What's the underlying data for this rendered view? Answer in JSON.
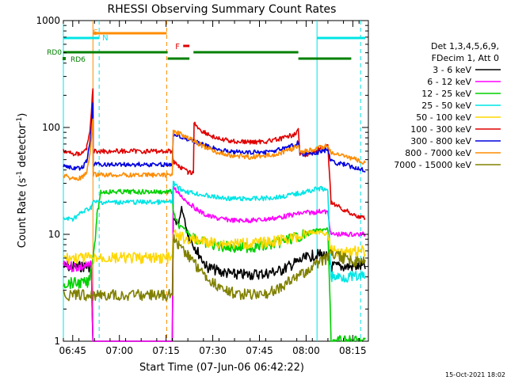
{
  "chart_data": {
    "type": "line",
    "title": "RHESSI Observing Summary Count Rates",
    "xlabel": "Start Time (07-Jun-06 06:42:22)",
    "ylabel_main": "Count Rate (s",
    "ylabel_sup1": "-1",
    "ylabel_mid": " detector",
    "ylabel_sup2": "-1",
    "ylabel_end": ")",
    "footer_timestamp": "15-Oct-2021 18:02",
    "yscale": "log",
    "ylim": [
      1,
      1000
    ],
    "xlim_minutes": [
      0,
      98
    ],
    "x_ticks": [
      {
        "m": 3,
        "label": "06:45"
      },
      {
        "m": 18,
        "label": "07:00"
      },
      {
        "m": 33,
        "label": "07:15"
      },
      {
        "m": 48,
        "label": "07:30"
      },
      {
        "m": 63,
        "label": "07:45"
      },
      {
        "m": 78,
        "label": "08:00"
      },
      {
        "m": 93,
        "label": "08:15"
      }
    ],
    "y_ticks": [
      {
        "v": 1,
        "label": "1"
      },
      {
        "v": 10,
        "label": "10"
      },
      {
        "v": 100,
        "label": "100"
      },
      {
        "v": 1000,
        "label": "1000"
      }
    ],
    "legend": {
      "header1": "Det 1,3,4,5,6,9,",
      "header2": "FDecim 1, Att 0",
      "entries": [
        "3 - 6 keV",
        "6 - 12 keV",
        "12 - 25 keV",
        "25 - 50 keV",
        "50 - 100 keV",
        "100 - 300 keV",
        "300 - 800 keV",
        "800 - 7000 keV",
        "7000 - 15000 keV"
      ]
    },
    "flags": {
      "S_label": "S",
      "N_label": "N",
      "F_label": "F",
      "RD0_label": "RD0",
      "RD6_label": "RD6",
      "S_segments": [
        [
          9.5,
          33.2
        ]
      ],
      "N_segments": [
        [
          0,
          11.5
        ],
        [
          81.5,
          97
        ]
      ],
      "RD0_segments": [
        [
          0,
          33.5
        ],
        [
          33.5,
          40.5
        ],
        [
          41.8,
          75.5
        ],
        [
          75.5,
          92.5
        ]
      ],
      "F_segment": [
        38.5,
        40.5
      ]
    },
    "vlines": [
      {
        "m": 0,
        "color": "#00e5e5",
        "style": "solid"
      },
      {
        "m": 11.5,
        "color": "#00e5e5",
        "style": "dashed"
      },
      {
        "m": 9.5,
        "color": "#ff8c00",
        "style": "solid"
      },
      {
        "m": 33.2,
        "color": "#ff8c00",
        "style": "dashed"
      },
      {
        "m": 81.5,
        "color": "#00e5e5",
        "style": "solid"
      },
      {
        "m": 95.5,
        "color": "#00e5e5",
        "style": "dashed"
      }
    ],
    "series": [
      {
        "name": "3 - 6 keV",
        "color": "#000000",
        "points": [
          [
            0,
            5
          ],
          [
            9,
            5
          ],
          [
            9.5,
            0.8
          ],
          [
            35,
            0.8
          ],
          [
            35.3,
            14
          ],
          [
            37,
            12
          ],
          [
            38,
            18
          ],
          [
            40,
            10
          ],
          [
            43,
            7
          ],
          [
            46,
            5
          ],
          [
            50,
            4.5
          ],
          [
            55,
            4.2
          ],
          [
            60,
            4.2
          ],
          [
            65,
            4.3
          ],
          [
            70,
            4.6
          ],
          [
            75,
            5.5
          ],
          [
            78,
            6
          ],
          [
            80,
            6.3
          ],
          [
            83,
            6.5
          ],
          [
            85,
            6
          ],
          [
            86,
            5
          ],
          [
            97,
            5
          ]
        ]
      },
      {
        "name": "6 - 12 keV",
        "color": "#ff00ff",
        "points": [
          [
            0,
            5
          ],
          [
            9,
            5
          ],
          [
            9.5,
            0.8
          ],
          [
            35,
            0.8
          ],
          [
            35.3,
            28
          ],
          [
            37,
            24
          ],
          [
            40,
            20
          ],
          [
            43,
            17
          ],
          [
            46,
            15
          ],
          [
            50,
            14
          ],
          [
            55,
            13.5
          ],
          [
            60,
            13.5
          ],
          [
            65,
            13.8
          ],
          [
            70,
            14.5
          ],
          [
            75,
            15.5
          ],
          [
            78,
            16
          ],
          [
            80,
            16
          ],
          [
            83,
            16.5
          ],
          [
            85,
            16
          ],
          [
            86,
            10
          ],
          [
            97,
            10
          ]
        ]
      },
      {
        "name": "12 - 25 keV",
        "color": "#00d000",
        "points": [
          [
            0,
            3.5
          ],
          [
            8,
            3.5
          ],
          [
            9,
            5
          ],
          [
            9.5,
            6
          ],
          [
            10,
            8
          ],
          [
            10.8,
            15
          ],
          [
            11.5,
            20
          ],
          [
            12,
            25
          ],
          [
            35,
            25
          ],
          [
            35.3,
            16
          ],
          [
            37,
            12
          ],
          [
            40,
            10.5
          ],
          [
            43,
            9
          ],
          [
            46,
            8.2
          ],
          [
            50,
            7.8
          ],
          [
            55,
            7.5
          ],
          [
            60,
            7.6
          ],
          [
            65,
            7.8
          ],
          [
            70,
            8.5
          ],
          [
            75,
            9.5
          ],
          [
            78,
            10
          ],
          [
            80,
            10.5
          ],
          [
            83,
            11
          ],
          [
            85,
            11
          ],
          [
            86,
            1.0
          ],
          [
            97,
            1.0
          ]
        ]
      },
      {
        "name": "25 - 50 keV",
        "color": "#00e5e5",
        "points": [
          [
            0,
            14
          ],
          [
            3,
            14
          ],
          [
            6,
            16
          ],
          [
            9,
            18
          ],
          [
            9.5,
            20
          ],
          [
            35,
            20
          ],
          [
            35.3,
            30
          ],
          [
            37,
            27
          ],
          [
            40,
            25
          ],
          [
            43,
            24
          ],
          [
            46,
            23
          ],
          [
            50,
            22
          ],
          [
            55,
            21.5
          ],
          [
            60,
            21.5
          ],
          [
            65,
            21.8
          ],
          [
            70,
            22.5
          ],
          [
            75,
            24
          ],
          [
            78,
            25
          ],
          [
            80,
            26
          ],
          [
            83,
            27
          ],
          [
            85,
            25
          ],
          [
            86,
            4
          ],
          [
            97,
            4
          ]
        ]
      },
      {
        "name": "50 - 100 keV",
        "color": "#ffd700",
        "points": [
          [
            0,
            6
          ],
          [
            9,
            6
          ],
          [
            9.5,
            6
          ],
          [
            35,
            6
          ],
          [
            35.3,
            10
          ],
          [
            37,
            9.5
          ],
          [
            40,
            9
          ],
          [
            43,
            8.8
          ],
          [
            46,
            8.5
          ],
          [
            50,
            8.3
          ],
          [
            55,
            8.2
          ],
          [
            60,
            8.2
          ],
          [
            65,
            8.4
          ],
          [
            70,
            8.8
          ],
          [
            75,
            9.5
          ],
          [
            78,
            10
          ],
          [
            80,
            10.5
          ],
          [
            83,
            10.5
          ],
          [
            85,
            10
          ],
          [
            86,
            7
          ],
          [
            97,
            7
          ]
        ]
      },
      {
        "name": "100 - 300 keV",
        "color": "#e00000",
        "points": [
          [
            0,
            60
          ],
          [
            2,
            58
          ],
          [
            4,
            56
          ],
          [
            6,
            58
          ],
          [
            7.5,
            65
          ],
          [
            8.5,
            90
          ],
          [
            9,
            140
          ],
          [
            9.3,
            200
          ],
          [
            9.5,
            230
          ],
          [
            9.6,
            60
          ],
          [
            35,
            60
          ],
          [
            35.3,
            48
          ],
          [
            37,
            44
          ],
          [
            38,
            42
          ],
          [
            40,
            38
          ],
          [
            41.8,
            38
          ],
          [
            42,
            110
          ],
          [
            44,
            95
          ],
          [
            46,
            88
          ],
          [
            48,
            82
          ],
          [
            50,
            78
          ],
          [
            55,
            74
          ],
          [
            60,
            73
          ],
          [
            65,
            74
          ],
          [
            70,
            78
          ],
          [
            74,
            86
          ],
          [
            75.5,
            95
          ],
          [
            76,
            55
          ],
          [
            78,
            55
          ],
          [
            80,
            58
          ],
          [
            82,
            62
          ],
          [
            83,
            64
          ],
          [
            85,
            66
          ],
          [
            86,
            20
          ],
          [
            90,
            17
          ],
          [
            94,
            15
          ],
          [
            97,
            14
          ]
        ]
      },
      {
        "name": "300 - 800 keV",
        "color": "#0000e0",
        "points": [
          [
            0,
            45
          ],
          [
            2,
            42
          ],
          [
            4,
            41
          ],
          [
            6,
            42
          ],
          [
            7.5,
            48
          ],
          [
            8.5,
            70
          ],
          [
            9,
            100
          ],
          [
            9.3,
            150
          ],
          [
            9.5,
            170
          ],
          [
            9.6,
            45
          ],
          [
            35,
            45
          ],
          [
            35.3,
            88
          ],
          [
            37,
            85
          ],
          [
            40,
            78
          ],
          [
            43,
            72
          ],
          [
            46,
            67
          ],
          [
            50,
            62
          ],
          [
            55,
            59
          ],
          [
            60,
            58
          ],
          [
            65,
            59
          ],
          [
            70,
            62
          ],
          [
            74,
            68
          ],
          [
            75.5,
            72
          ],
          [
            76,
            58
          ],
          [
            78,
            56
          ],
          [
            80,
            57
          ],
          [
            83,
            60
          ],
          [
            85,
            62
          ],
          [
            86,
            48
          ],
          [
            90,
            45
          ],
          [
            94,
            42
          ],
          [
            97,
            40
          ]
        ]
      },
      {
        "name": "800 - 7000 keV",
        "color": "#ff8c00",
        "points": [
          [
            0,
            36
          ],
          [
            2,
            34
          ],
          [
            4,
            33
          ],
          [
            6,
            34
          ],
          [
            7.5,
            38
          ],
          [
            8.5,
            55
          ],
          [
            9,
            80
          ],
          [
            9.3,
            110
          ],
          [
            9.5,
            120
          ],
          [
            9.6,
            36
          ],
          [
            35,
            36
          ],
          [
            35.3,
            92
          ],
          [
            37,
            88
          ],
          [
            40,
            80
          ],
          [
            43,
            72
          ],
          [
            46,
            64
          ],
          [
            50,
            58
          ],
          [
            55,
            54
          ],
          [
            60,
            53
          ],
          [
            65,
            54
          ],
          [
            70,
            58
          ],
          [
            74,
            64
          ],
          [
            75.5,
            68
          ],
          [
            76,
            60
          ],
          [
            78,
            60
          ],
          [
            80,
            62
          ],
          [
            83,
            65
          ],
          [
            85,
            68
          ],
          [
            86,
            58
          ],
          [
            90,
            54
          ],
          [
            94,
            50
          ],
          [
            97,
            46
          ]
        ]
      },
      {
        "name": "7000 - 15000 keV",
        "color": "#808000",
        "points": [
          [
            0,
            2.7
          ],
          [
            9,
            2.7
          ],
          [
            9.5,
            2.7
          ],
          [
            35,
            2.7
          ],
          [
            35.3,
            9
          ],
          [
            37,
            8
          ],
          [
            40,
            6.5
          ],
          [
            43,
            5
          ],
          [
            46,
            4
          ],
          [
            50,
            3.2
          ],
          [
            55,
            2.8
          ],
          [
            60,
            2.7
          ],
          [
            65,
            2.8
          ],
          [
            70,
            3.2
          ],
          [
            75,
            4
          ],
          [
            78,
            4.5
          ],
          [
            80,
            5
          ],
          [
            83,
            5.5
          ],
          [
            85,
            6
          ],
          [
            86,
            6.5
          ],
          [
            90,
            6
          ],
          [
            94,
            5.5
          ],
          [
            97,
            5.5
          ]
        ]
      }
    ]
  }
}
